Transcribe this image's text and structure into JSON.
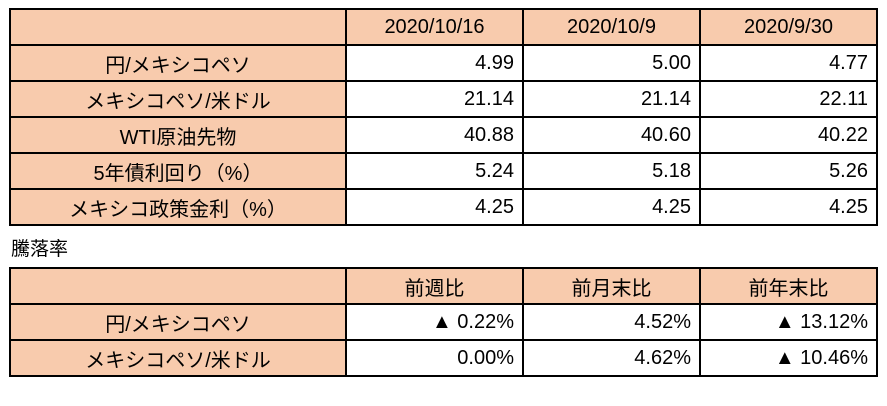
{
  "colors": {
    "header_bg": "#F8CBAD",
    "border": "#000000",
    "value_bg": "#FFFFFF"
  },
  "rates_table": {
    "headers": [
      "",
      "2020/10/16",
      "2020/10/9",
      "2020/9/30"
    ],
    "rows": [
      {
        "label": "円/メキシコペソ",
        "values": [
          "4.99",
          "5.00",
          "4.77"
        ]
      },
      {
        "label": "メキシコペソ/米ドル",
        "values": [
          "21.14",
          "21.14",
          "22.11"
        ]
      },
      {
        "label": "WTI原油先物",
        "values": [
          "40.88",
          "40.60",
          "40.22"
        ]
      },
      {
        "label": "5年債利回り（%）",
        "values": [
          "5.24",
          "5.18",
          "5.26"
        ]
      },
      {
        "label": "メキシコ政策金利（%）",
        "values": [
          "4.25",
          "4.25",
          "4.25"
        ]
      }
    ]
  },
  "section_label": "騰落率",
  "change_table": {
    "headers": [
      "",
      "前週比",
      "前月末比",
      "前年末比"
    ],
    "rows": [
      {
        "label": "円/メキシコペソ",
        "values": [
          "▲ 0.22%",
          "4.52%",
          "▲ 13.12%"
        ]
      },
      {
        "label": "メキシコペソ/米ドル",
        "values": [
          "0.00%",
          "4.62%",
          "▲ 10.46%"
        ]
      }
    ]
  }
}
